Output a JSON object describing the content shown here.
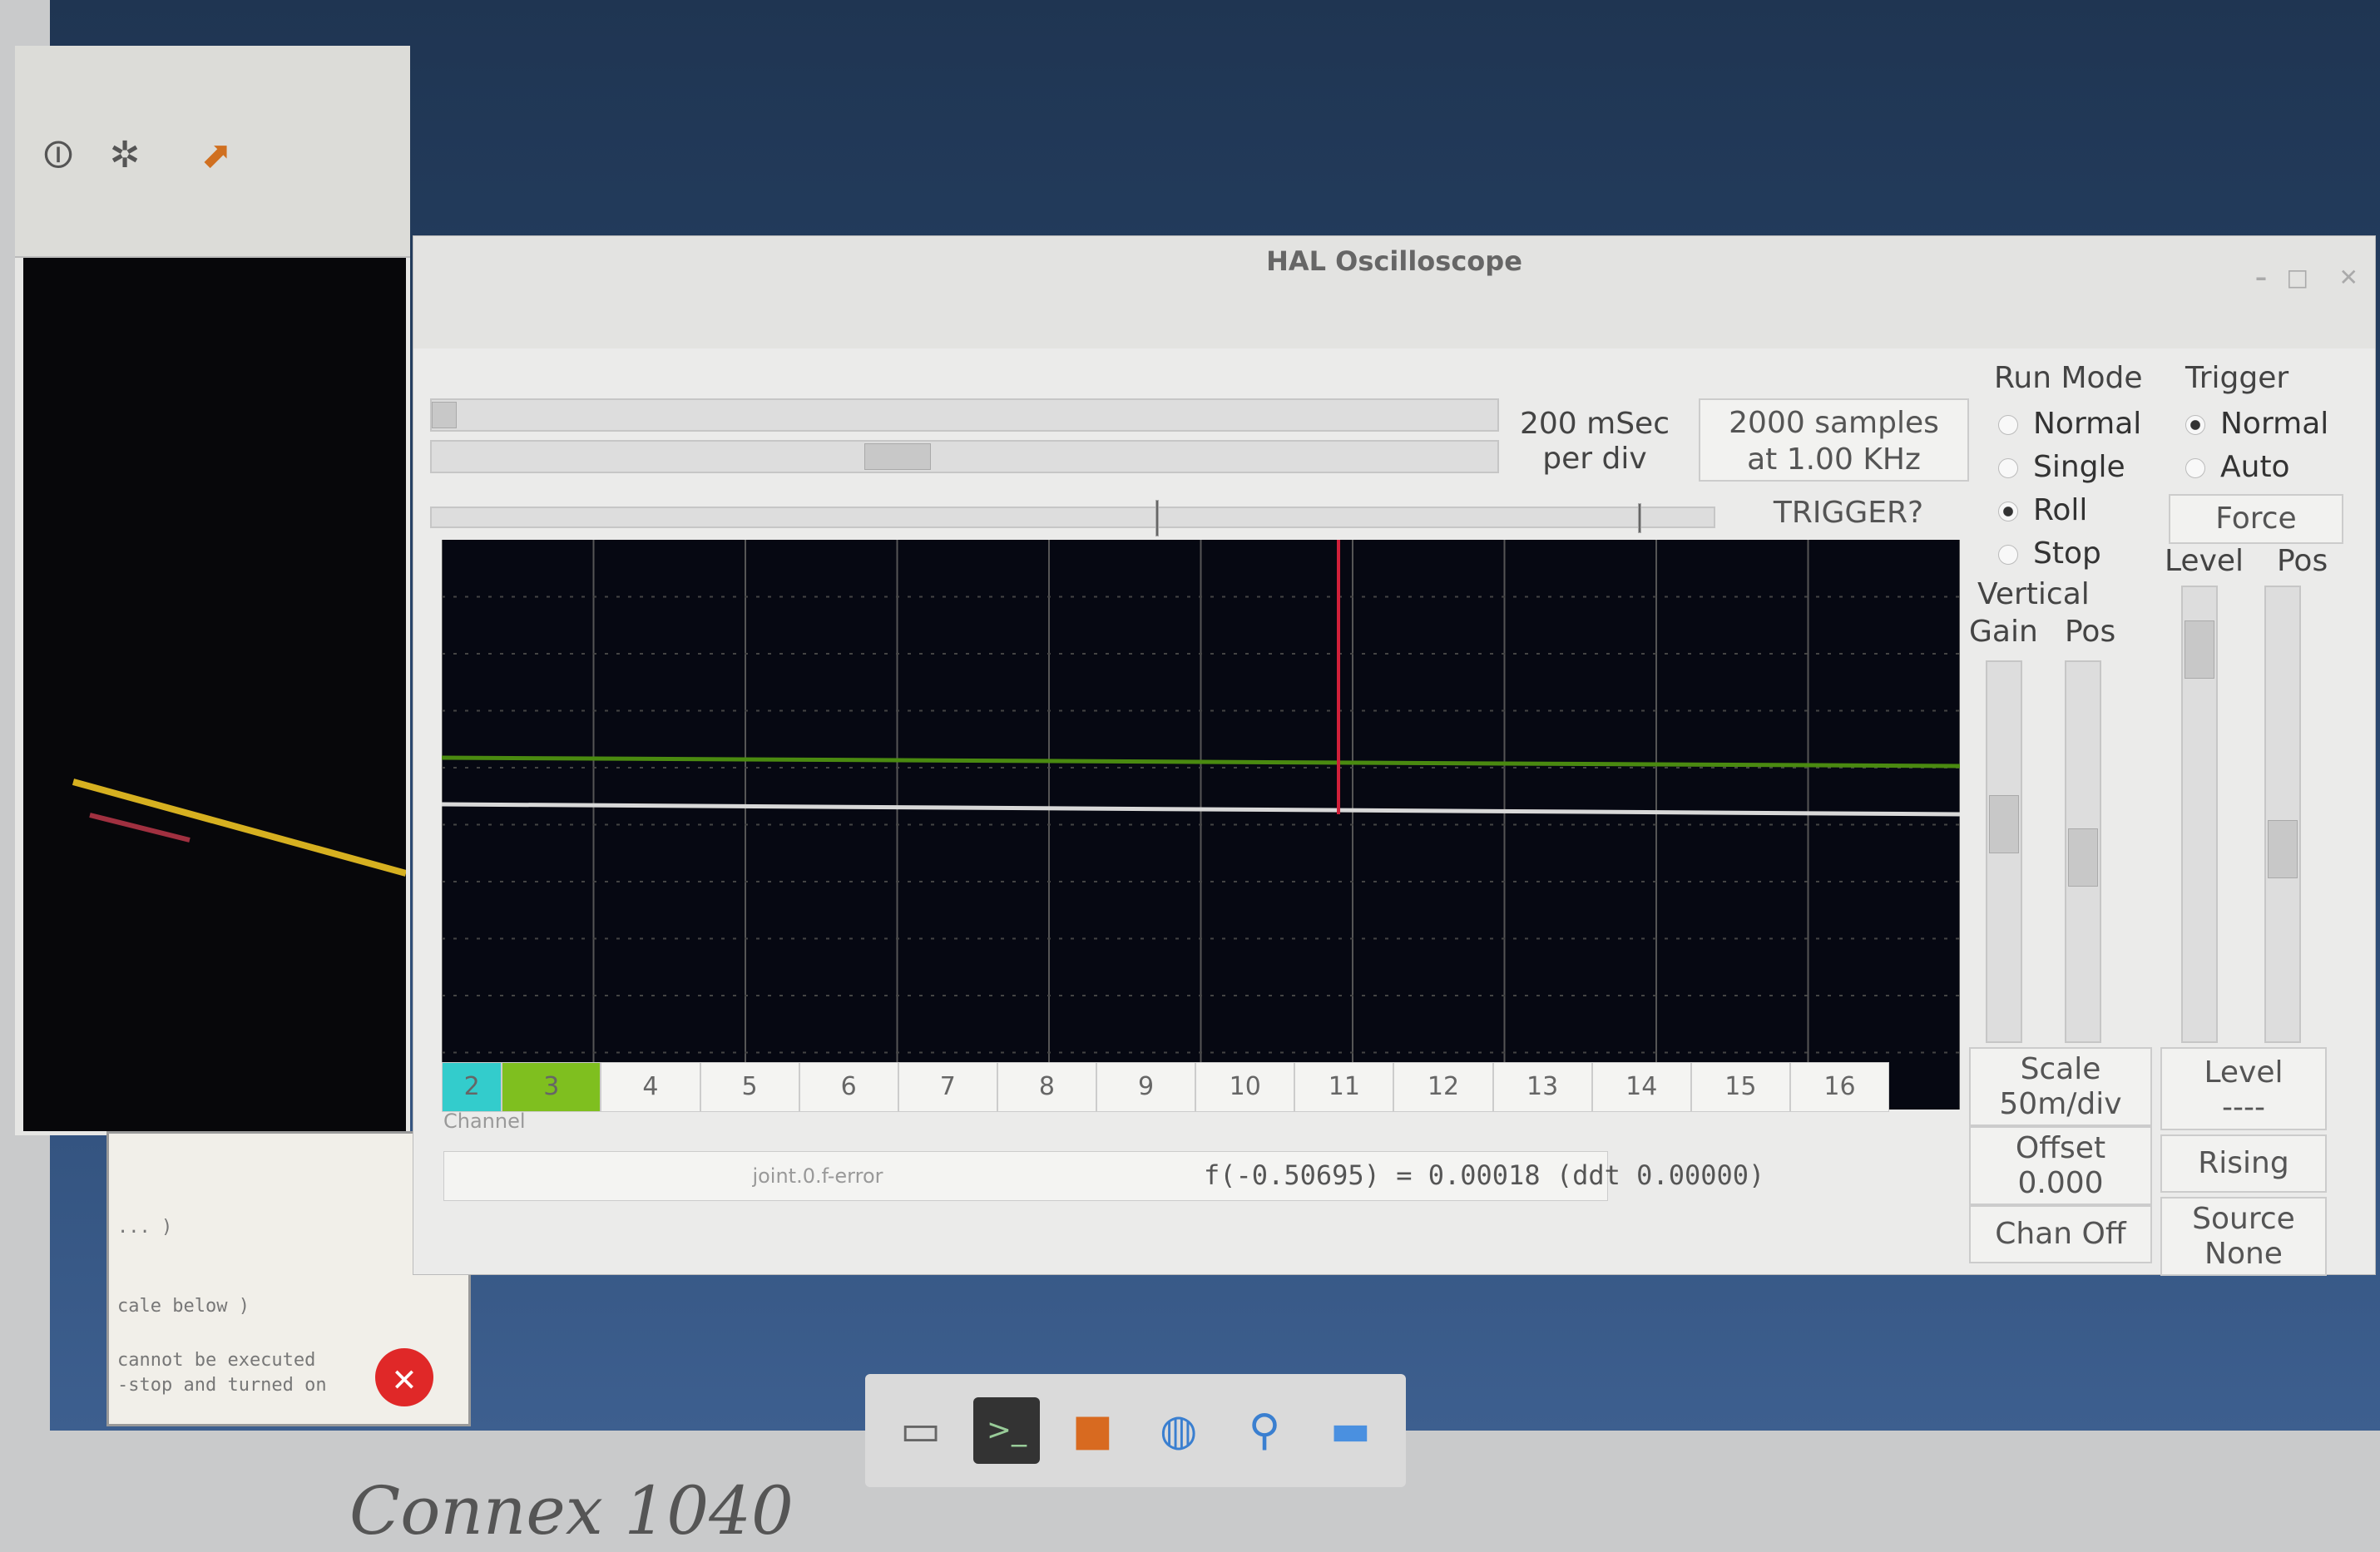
{
  "scope": {
    "title": "HAL Oscilloscope",
    "horizontal": {
      "rate_line1": "200 mSec",
      "rate_line2": "per div",
      "samples_line1": "2000 samples",
      "samples_line2": "at 1.00 KHz",
      "trigger_status": "TRIGGER?"
    },
    "run_mode": {
      "label": "Run Mode",
      "options": [
        "Normal",
        "Single",
        "Roll",
        "Stop"
      ],
      "selected": "Roll"
    },
    "trigger": {
      "label": "Trigger",
      "options": [
        "Normal",
        "Auto"
      ],
      "selected": "Normal",
      "force": "Force",
      "level_label": "Level",
      "pos_label": "Pos"
    },
    "vertical": {
      "label": "Vertical",
      "gain_label": "Gain",
      "pos_label": "Pos",
      "scale_line1": "Scale",
      "scale_line2": "50m/div",
      "offset_line1": "Offset",
      "offset_line2": "0.000",
      "chan_off": "Chan Off"
    },
    "trigger_info": {
      "level_line1": "Level",
      "level_line2": "----",
      "edge": "Rising",
      "source_line1": "Source",
      "source_line2": "None"
    },
    "channels": [
      "2",
      "3",
      "4",
      "5",
      "6",
      "7",
      "8",
      "9",
      "10",
      "11",
      "12",
      "13",
      "14",
      "15",
      "16"
    ],
    "channel_label": "Channel",
    "selected_signal": "joint.0.f-error",
    "readout": "f(-0.50695) = 0.00018 (ddt 0.00000)",
    "colors": {
      "ch2": "#33cccc",
      "ch3": "#7fbf1f",
      "trace_green": "#4a8a10",
      "trace_white": "#d8d8d8",
      "cursor": "#d0203a",
      "plot_bg": "#060812"
    }
  },
  "console": {
    "lines": [
      "... )",
      "cale below )"
    ],
    "error": [
      "cannot be executed",
      "-stop and turned on"
    ]
  },
  "bezel_label": "Connex 1040"
}
